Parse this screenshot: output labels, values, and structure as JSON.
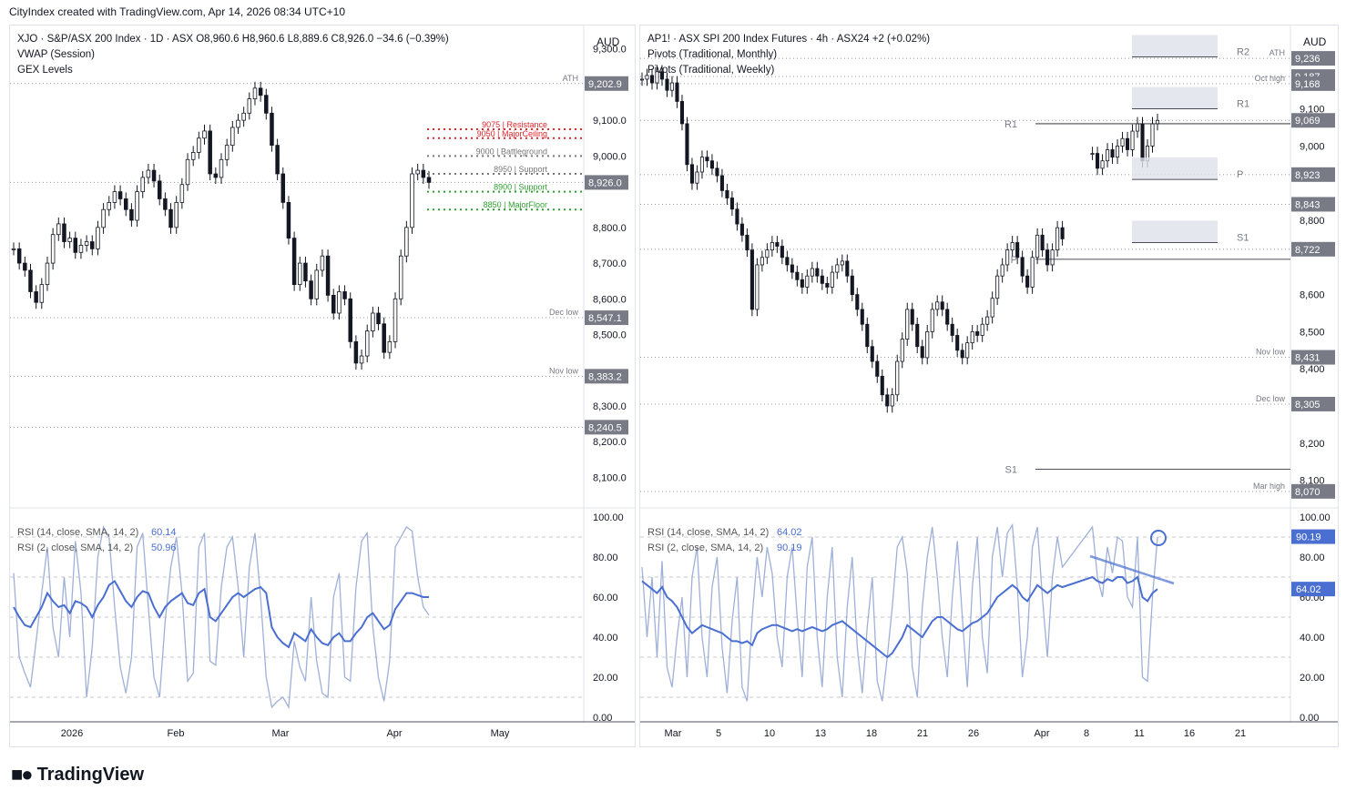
{
  "header": {
    "credit": "CityIndex created with TradingView.com, Apr 14, 2026 08:34 UTC+10"
  },
  "brand": {
    "name": "TradingView"
  },
  "colors": {
    "candle": "#131722",
    "rsi14": "#4a6fd1",
    "rsi2": "#9fb0d8",
    "gex_red": "#e0252b",
    "gex_gray": "#777777",
    "gex_green": "#2ea02e",
    "pivot_zone": "#dfe1ea",
    "price_label_bg": "#787b86"
  },
  "left": {
    "legend": [
      {
        "text": "XJO · S&P/ASX 200 Index · 1D · ASX  O8,960.6  H8,960.6  L8,889.6  C8,926.0  −34.6 (−0.39%)"
      },
      {
        "text": "VWAP (Session)"
      },
      {
        "text": "GEX Levels"
      }
    ],
    "currency": "AUD",
    "rsi_legend": [
      {
        "text": "RSI (14, close, SMA, 14, 2)",
        "value": "60.14"
      },
      {
        "text": "RSI (2, close, SMA, 14, 2)",
        "value": "50.96"
      }
    ],
    "x_labels": [
      "2026",
      "Feb",
      "Mar",
      "Apr",
      "May"
    ]
  },
  "right": {
    "legend": [
      {
        "text": "AP1! · ASX SPI 200 Index Futures · 4h · ASX24  +2 (+0.02%)"
      },
      {
        "text": "Pivots (Traditional, Monthly)"
      },
      {
        "text": "Pivots (Traditional, Weekly)"
      }
    ],
    "currency": "AUD",
    "rsi_legend": [
      {
        "text": "RSI (14, close, SMA, 14, 2)",
        "value": "64.02"
      },
      {
        "text": "RSI (2, close, SMA, 14, 2)",
        "value": "90.19"
      }
    ],
    "x_labels": [
      "Mar",
      "5",
      "10",
      "13",
      "18",
      "21",
      "26",
      "Apr",
      "8",
      "11",
      "16",
      "21"
    ]
  },
  "chart_data": [
    {
      "type": "candlestick",
      "title": "XJO · S&P/ASX 200 Index · 1D · ASX",
      "ylim": [
        8040,
        9340
      ],
      "y_ticks": [
        "9,300.0",
        "9,100.0",
        "9,000.0",
        "8,800.0",
        "8,700.0",
        "8,600.0",
        "8,500.0",
        "8,300.0",
        "8,200.0",
        "8,100.0"
      ],
      "tick_values": [
        9300,
        9100,
        9000,
        8800,
        8700,
        8600,
        8500,
        8300,
        8200,
        8100
      ],
      "highlighted_prices": [
        {
          "label": "9,202.9",
          "value": 9202.9,
          "tag": "ATH"
        },
        {
          "label": "8,926.0",
          "value": 8926.0,
          "tag": ""
        },
        {
          "label": "8,547.1",
          "value": 8547.1,
          "tag": "Dec low"
        },
        {
          "label": "8,383.2",
          "value": 8383.2,
          "tag": "Nov low"
        },
        {
          "label": "8,240.5",
          "value": 8240.5,
          "tag": ""
        }
      ],
      "gex_levels": [
        {
          "label": "9075 | Resistance",
          "value": 9075,
          "color": "red"
        },
        {
          "label": "9050 | MajorCeiling",
          "value": 9050,
          "color": "red"
        },
        {
          "label": "9000 | Battleground",
          "value": 9000,
          "color": "gray"
        },
        {
          "label": "8950 | Support",
          "value": 8950,
          "color": "gray"
        },
        {
          "label": "8900 | Support",
          "value": 8900,
          "color": "green"
        },
        {
          "label": "8850 | MajorFloor",
          "value": 8850,
          "color": "green"
        }
      ],
      "closes": [
        8740,
        8700,
        8680,
        8620,
        8590,
        8640,
        8700,
        8780,
        8810,
        8760,
        8770,
        8730,
        8750,
        8760,
        8740,
        8800,
        8850,
        8870,
        8900,
        8880,
        8850,
        8820,
        8900,
        8940,
        8960,
        8930,
        8880,
        8850,
        8800,
        8870,
        8920,
        8990,
        9010,
        9050,
        9070,
        8950,
        8940,
        8990,
        9030,
        9080,
        9100,
        9120,
        9160,
        9190,
        9170,
        9120,
        9030,
        8950,
        8870,
        8770,
        8640,
        8700,
        8650,
        8600,
        8680,
        8720,
        8610,
        8560,
        8620,
        8600,
        8480,
        8420,
        8440,
        8510,
        8560,
        8530,
        8450,
        8480,
        8600,
        8720,
        8800,
        8950,
        8960,
        8940,
        8926
      ],
      "rsi_ylim": [
        0,
        100
      ],
      "rsi_ticks": [
        "100.00",
        "80.00",
        "60.00",
        "40.00",
        "20.00",
        "0.00"
      ],
      "rsi_tick_values": [
        100,
        80,
        60,
        40,
        20,
        0
      ],
      "rsi14": [
        55,
        50,
        46,
        45,
        50,
        55,
        62,
        58,
        55,
        56,
        52,
        58,
        57,
        55,
        50,
        56,
        60,
        66,
        68,
        63,
        58,
        55,
        60,
        63,
        62,
        55,
        50,
        55,
        58,
        60,
        62,
        57,
        56,
        62,
        64,
        50,
        48,
        52,
        56,
        60,
        62,
        60,
        62,
        64,
        65,
        62,
        45,
        40,
        37,
        35,
        42,
        40,
        38,
        44,
        40,
        37,
        36,
        40,
        42,
        38,
        38,
        42,
        45,
        50,
        52,
        48,
        44,
        46,
        54,
        58,
        62,
        62,
        61,
        60,
        60
      ],
      "rsi2": [
        72,
        30,
        22,
        15,
        38,
        62,
        85,
        45,
        30,
        70,
        40,
        88,
        62,
        10,
        35,
        80,
        95,
        90,
        55,
        25,
        12,
        30,
        85,
        92,
        55,
        20,
        10,
        48,
        75,
        90,
        62,
        18,
        22,
        85,
        92,
        28,
        26,
        65,
        85,
        90,
        65,
        30,
        75,
        92,
        60,
        20,
        5,
        8,
        10,
        5,
        38,
        25,
        18,
        60,
        28,
        12,
        10,
        60,
        72,
        20,
        18,
        65,
        88,
        92,
        45,
        20,
        8,
        28,
        85,
        90,
        95,
        93,
        70,
        55,
        51
      ]
    },
    {
      "type": "candlestick",
      "title": "AP1! · ASX SPI 200 Index Futures · 4h · ASX24",
      "ylim": [
        8050,
        9300
      ],
      "y_ticks": [
        "9,100",
        "9,000",
        "8,800",
        "8,600",
        "8,500",
        "8,400",
        "8,200",
        "8,100"
      ],
      "tick_values": [
        9100,
        9000,
        8800,
        8600,
        8500,
        8400,
        8200,
        8100
      ],
      "highlighted_prices": [
        {
          "label": "9,236",
          "value": 9236,
          "tag": "ATH"
        },
        {
          "label": "9,187",
          "value": 9187,
          "tag": ""
        },
        {
          "label": "9,168",
          "value": 9168,
          "tag": "Oct high"
        },
        {
          "label": "9,069",
          "value": 9069,
          "tag": ""
        },
        {
          "label": "8,923",
          "value": 8923,
          "tag": ""
        },
        {
          "label": "8,843",
          "value": 8843,
          "tag": ""
        },
        {
          "label": "8,722",
          "value": 8722,
          "tag": ""
        },
        {
          "label": "8,431",
          "value": 8431,
          "tag": "Nov low"
        },
        {
          "label": "8,305",
          "value": 8305,
          "tag": "Dec low"
        },
        {
          "label": "8,070",
          "value": 8070,
          "tag": "Mar high"
        }
      ],
      "pivots_monthly": [
        {
          "label": "R1",
          "value": 9060
        },
        {
          "label": "P",
          "value": 8695
        },
        {
          "label": "S1",
          "value": 8130
        }
      ],
      "pivots_weekly": [
        {
          "label": "R2",
          "value": 9240
        },
        {
          "label": "R1",
          "value": 9100
        },
        {
          "label": "P",
          "value": 8910
        },
        {
          "label": "S1",
          "value": 8740
        }
      ],
      "xtra_labels": [
        "Dec low"
      ],
      "closes": [
        9180,
        9190,
        9170,
        9200,
        9180,
        9150,
        9170,
        9120,
        9060,
        8950,
        8900,
        8930,
        8970,
        8960,
        8940,
        8920,
        8880,
        8860,
        8830,
        8790,
        8760,
        8720,
        8560,
        8680,
        8700,
        8720,
        8740,
        8730,
        8700,
        8680,
        8660,
        8640,
        8620,
        8650,
        8670,
        8650,
        8630,
        8620,
        8660,
        8680,
        8690,
        8650,
        8600,
        8560,
        8520,
        8460,
        8420,
        8380,
        8330,
        8300,
        8330,
        8420,
        8480,
        8560,
        8520,
        8460,
        8430,
        8500,
        8560,
        8580,
        8560,
        8520,
        8490,
        8450,
        8430,
        8470,
        8500,
        8490,
        8520,
        8540,
        8590,
        8650,
        8680,
        8720,
        8740,
        8700,
        8650,
        8620,
        8700,
        8760,
        8720,
        8680,
        8720,
        8780,
        8750,
        null,
        null,
        null,
        null,
        null,
        8980,
        8940,
        8960,
        8990,
        8970,
        9000,
        9020,
        8990,
        9040,
        9060,
        8960,
        9000,
        9060,
        9069
      ],
      "rsi_ylim": [
        0,
        100
      ],
      "rsi_ticks": [
        "100.00",
        "80.00",
        "60.00",
        "40.00",
        "20.00",
        "0.00"
      ],
      "rsi_tick_values": [
        100,
        80,
        60,
        40,
        20,
        0
      ],
      "rsi_trendline": [
        {
          "x": 1196,
          "y": 610
        },
        {
          "x": 1288,
          "y": 640
        }
      ],
      "rsi14": [
        68,
        66,
        64,
        62,
        65,
        60,
        58,
        55,
        50,
        45,
        42,
        44,
        46,
        45,
        44,
        43,
        42,
        40,
        38,
        38,
        37,
        38,
        36,
        42,
        44,
        45,
        46,
        46,
        45,
        44,
        43,
        44,
        43,
        44,
        45,
        44,
        43,
        44,
        46,
        47,
        48,
        46,
        44,
        42,
        40,
        38,
        36,
        34,
        32,
        30,
        32,
        36,
        40,
        46,
        44,
        42,
        40,
        44,
        48,
        50,
        50,
        48,
        46,
        44,
        43,
        45,
        47,
        48,
        50,
        52,
        56,
        60,
        62,
        64,
        66,
        64,
        60,
        58,
        62,
        66,
        64,
        62,
        64,
        66,
        65,
        null,
        null,
        null,
        null,
        null,
        70,
        68,
        67,
        69,
        68,
        70,
        70,
        67,
        68,
        70,
        60,
        58,
        62,
        64
      ],
      "rsi2": [
        75,
        40,
        70,
        30,
        78,
        25,
        15,
        40,
        60,
        20,
        70,
        85,
        40,
        20,
        65,
        80,
        35,
        12,
        48,
        70,
        15,
        8,
        50,
        80,
        60,
        85,
        72,
        40,
        25,
        70,
        85,
        50,
        20,
        75,
        90,
        40,
        15,
        60,
        85,
        30,
        10,
        55,
        80,
        35,
        12,
        45,
        70,
        18,
        8,
        30,
        55,
        85,
        90,
        72,
        25,
        10,
        55,
        80,
        95,
        70,
        40,
        20,
        60,
        88,
        50,
        15,
        65,
        90,
        40,
        22,
        80,
        95,
        70,
        92,
        96,
        65,
        20,
        40,
        85,
        95,
        60,
        30,
        70,
        90,
        75,
        null,
        null,
        null,
        null,
        null,
        95,
        70,
        60,
        85,
        72,
        90,
        88,
        60,
        55,
        90,
        20,
        18,
        60,
        90
      ]
    }
  ]
}
